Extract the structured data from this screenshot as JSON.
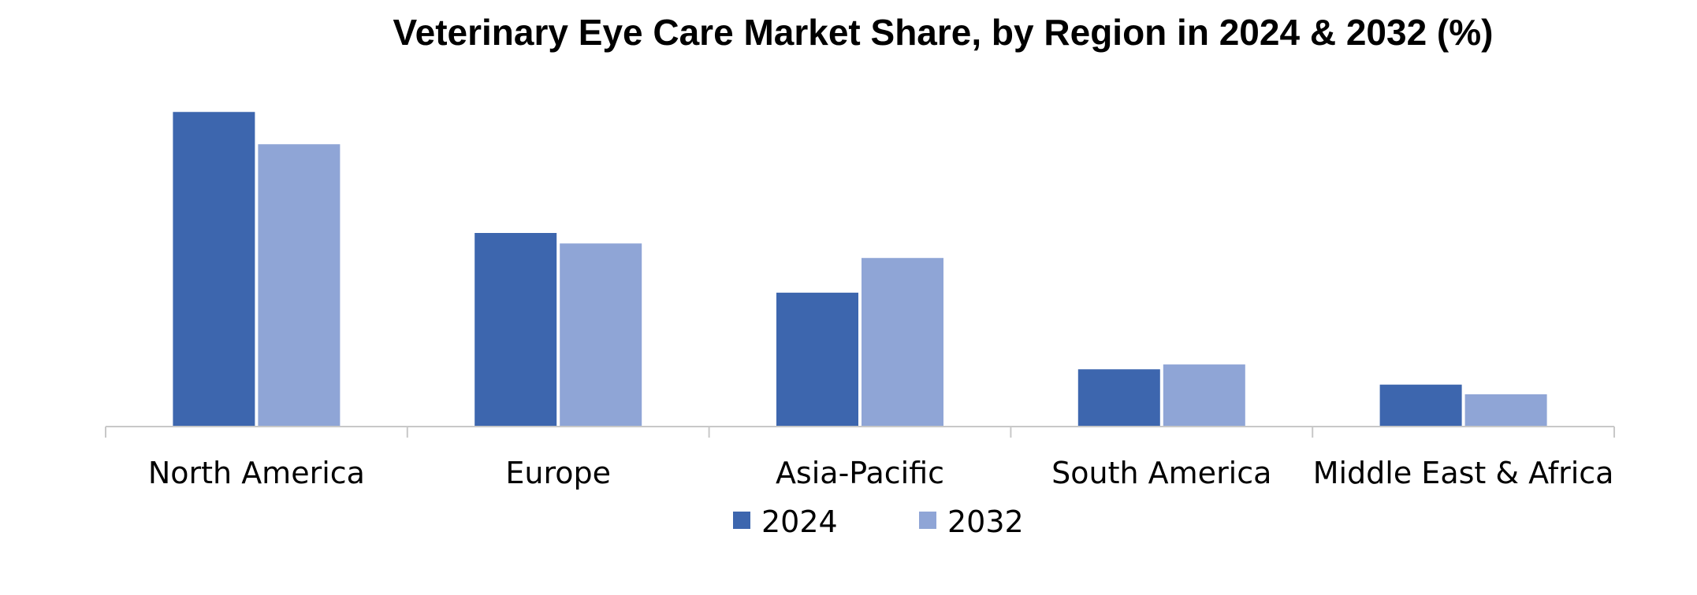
{
  "chart_data": {
    "type": "bar",
    "title": "Veterinary Eye Care Market Share, by Region in 2024 & 2032 (%)",
    "xlabel": "",
    "ylabel": "",
    "categories": [
      "North America",
      "Europe",
      "Asia-Pacific",
      "South America",
      "Middle East & Africa"
    ],
    "series": [
      {
        "name": "2024",
        "color": "#3D66AE",
        "values": [
          39.0,
          24.0,
          16.6,
          7.1,
          5.2
        ]
      },
      {
        "name": "2032",
        "color": "#8FA5D6",
        "values": [
          35.0,
          22.7,
          20.9,
          7.7,
          4.0
        ]
      }
    ],
    "ylim": [
      0,
      40
    ],
    "grid": false,
    "legend_position": "bottom"
  }
}
